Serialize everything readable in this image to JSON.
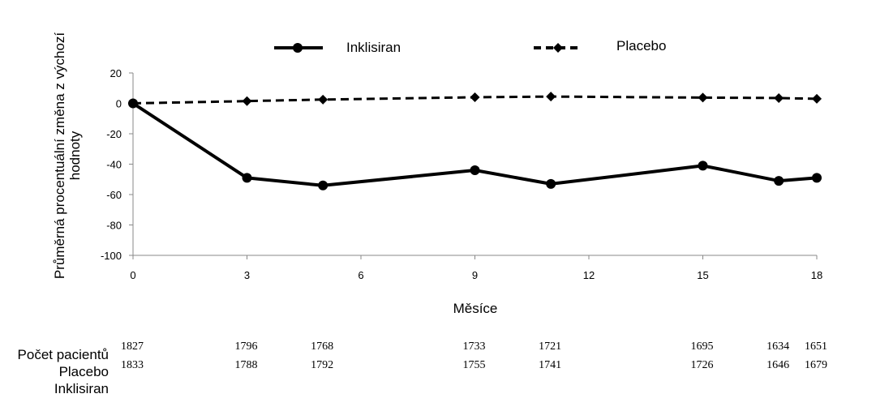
{
  "chart_data": {
    "type": "line",
    "xlabel": "Měsíce",
    "ylabel_lines": [
      "Průměrná procentuální změna z výchozí",
      "hodnoty"
    ],
    "xlim": [
      0,
      18
    ],
    "ylim": [
      -100,
      20
    ],
    "x_ticks": [
      0,
      3,
      6,
      9,
      12,
      15,
      18
    ],
    "y_ticks": [
      20,
      0,
      -20,
      -40,
      -60,
      -80,
      -100
    ],
    "grid": false,
    "legend_position": "top",
    "series": [
      {
        "name": "Inklisiran",
        "style": "solid",
        "marker": "circle",
        "color": "#000000",
        "x": [
          0,
          3,
          5,
          9,
          11,
          15,
          17,
          18
        ],
        "values": [
          0,
          -49,
          -54,
          -44,
          -53,
          -41,
          -51,
          -49
        ]
      },
      {
        "name": "Placebo",
        "style": "dashed",
        "marker": "diamond",
        "color": "#000000",
        "x": [
          0,
          3,
          5,
          9,
          11,
          15,
          17,
          18
        ],
        "values": [
          0,
          1.5,
          2.5,
          4,
          4.5,
          3.8,
          3.5,
          3
        ]
      }
    ],
    "patient_counts": {
      "labels": [
        "Počet pacientů",
        "Placebo",
        "Inklisiran"
      ],
      "x": [
        0,
        3,
        5,
        9,
        11,
        15,
        17,
        18
      ],
      "row1": [
        "1827",
        "1796",
        "1768",
        "1733",
        "1721",
        "1695",
        "1634",
        "1651"
      ],
      "row2": [
        "1833",
        "1788",
        "1792",
        "1755",
        "1741",
        "1726",
        "1646",
        "1679"
      ]
    }
  }
}
